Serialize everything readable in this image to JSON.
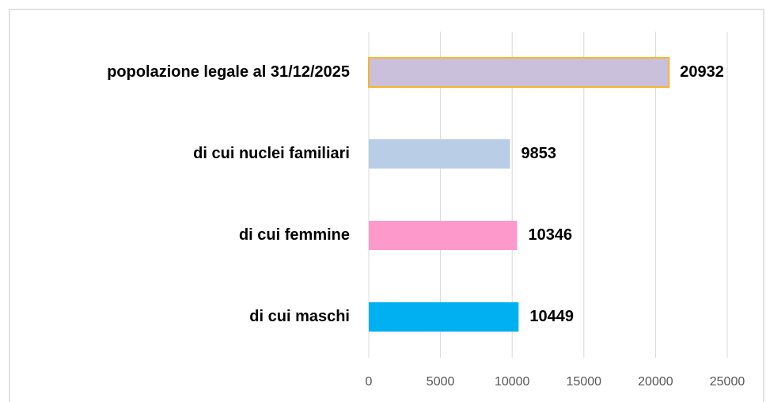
{
  "chart_data": {
    "type": "barh",
    "categories": [
      "popolazione legale al 31/12/2025",
      "di cui nuclei familiari",
      "di cui femmine",
      "di cui maschi"
    ],
    "values": [
      20932,
      9853,
      10346,
      10449
    ],
    "colors": [
      "#cbc0dc",
      "#b9cde6",
      "#fe99cc",
      "#00b0f0"
    ],
    "edgecolors": [
      "#f5b72a",
      null,
      null,
      null
    ],
    "xlim": [
      0,
      25000
    ],
    "xticks": [
      0,
      5000,
      10000,
      15000,
      20000,
      25000
    ],
    "grid": true
  }
}
